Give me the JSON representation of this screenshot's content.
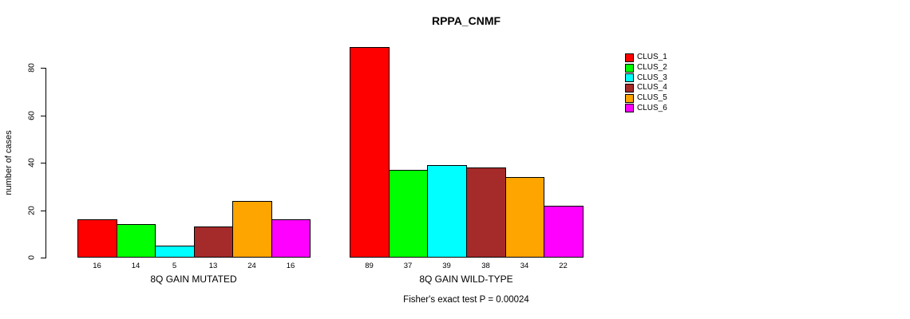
{
  "title": "RPPA_CNMF",
  "chart_data": {
    "type": "bar",
    "title": "RPPA_CNMF",
    "ylabel": "number of cases",
    "xlabel": "",
    "categories": [
      "CLUS_1",
      "CLUS_2",
      "CLUS_3",
      "CLUS_4",
      "CLUS_5",
      "CLUS_6"
    ],
    "series_colors": [
      "#FF0000",
      "#00FF00",
      "#00FFFF",
      "#A52A2A",
      "#FFA500",
      "#FF00FF"
    ],
    "groups": [
      {
        "label": "8Q GAIN MUTATED",
        "values": [
          16,
          14,
          5,
          13,
          24,
          16
        ]
      },
      {
        "label": "8Q GAIN WILD-TYPE",
        "values": [
          89,
          37,
          39,
          38,
          34,
          22
        ]
      }
    ],
    "bar_value_labels_shown": true,
    "yticks": [
      0,
      20,
      40,
      60,
      80
    ],
    "ylim": [
      0,
      89
    ],
    "grid": false,
    "legend": {
      "position": "right",
      "entries": [
        {
          "label": "CLUS_1",
          "color": "#FF0000"
        },
        {
          "label": "CLUS_2",
          "color": "#00FF00"
        },
        {
          "label": "CLUS_3",
          "color": "#00FFFF"
        },
        {
          "label": "CLUS_4",
          "color": "#A52A2A"
        },
        {
          "label": "CLUS_5",
          "color": "#FFA500"
        },
        {
          "label": "CLUS_6",
          "color": "#FF00FF"
        }
      ]
    },
    "annotation": "Fisher's exact test P = 0.00024"
  }
}
